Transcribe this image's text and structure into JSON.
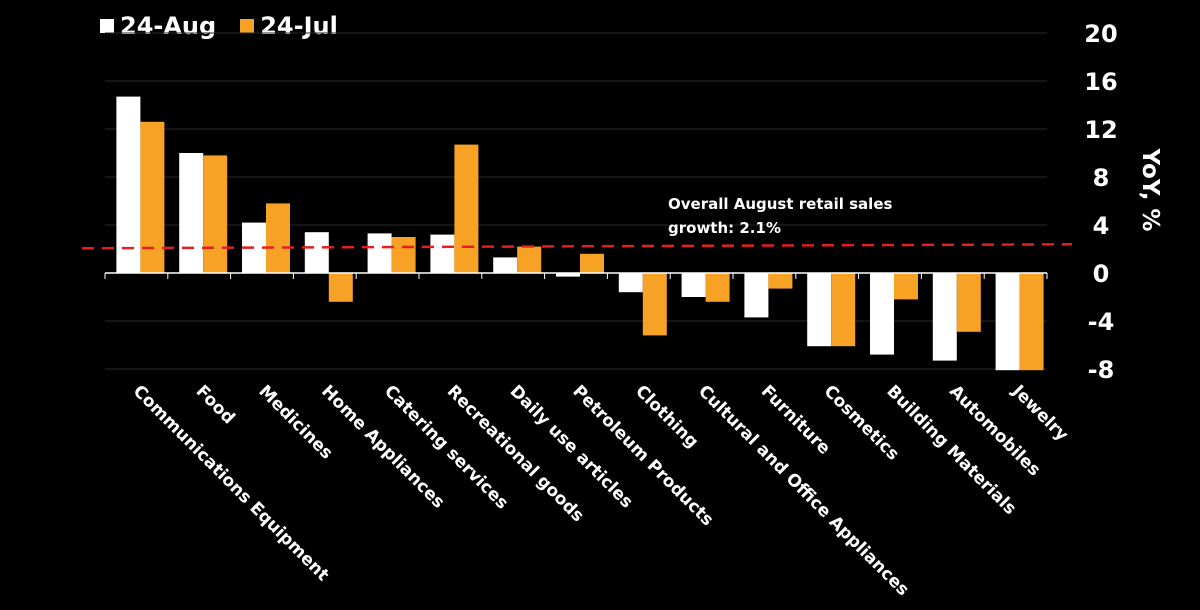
{
  "chart_data": {
    "type": "bar",
    "categories": [
      "Communications Equipment",
      "Food",
      "Medicines",
      "Home Appliances",
      "Catering services",
      "Recreational goods",
      "Daily use articles",
      "Petroleum Products",
      "Clothing",
      "Cultural and Office Appliances",
      "Furniture",
      "Cosmetics",
      "Building Materials",
      "Automobiles",
      "Jewelry"
    ],
    "series": [
      {
        "name": "24-Aug",
        "color": "#ffffff",
        "values": [
          14.7,
          10.0,
          4.2,
          3.4,
          3.3,
          3.2,
          1.3,
          -0.3,
          -1.6,
          -2.0,
          -3.7,
          -6.1,
          -6.8,
          -7.3,
          -8.1
        ]
      },
      {
        "name": "24-Jul",
        "color": "#f7a224",
        "values": [
          12.6,
          9.8,
          5.8,
          -2.4,
          3.0,
          10.7,
          2.2,
          1.6,
          -5.2,
          -2.4,
          -1.3,
          -6.1,
          -2.2,
          -4.9,
          -8.1
        ]
      }
    ],
    "ylabel": "YoY, %",
    "ylim": [
      -8,
      20
    ],
    "yticks": [
      20,
      16,
      12,
      8,
      4,
      0,
      -4,
      -8
    ],
    "reference_line": {
      "value": 2.1,
      "color": "#e41f1f",
      "label": "Overall August retail sales growth: 2.1%"
    },
    "grid": true,
    "legend_position": "top-left"
  }
}
